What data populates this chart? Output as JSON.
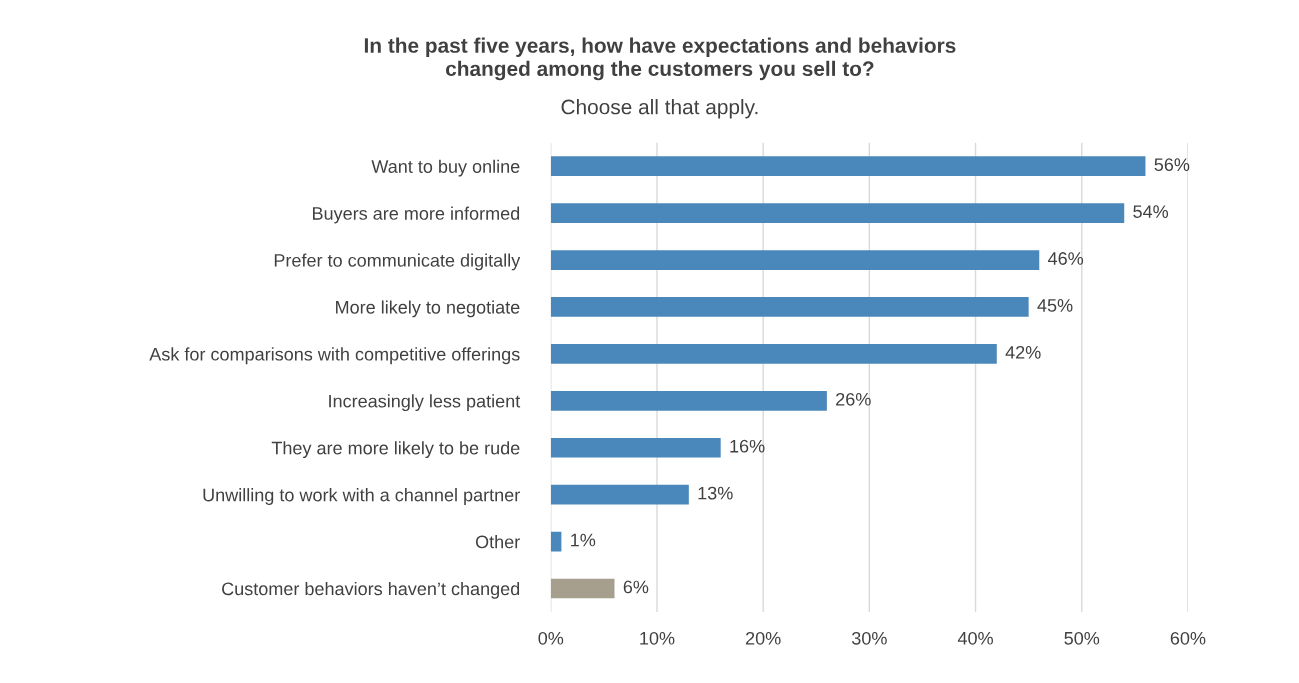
{
  "chart_data": {
    "type": "bar",
    "orientation": "horizontal",
    "title": "In the past five years, how have expectations and behaviors\nchanged among the customers you sell to?",
    "subtitle": "Choose all that apply.",
    "categories": [
      "Want to buy online",
      "Buyers are more informed",
      "Prefer to communicate digitally",
      "More likely to negotiate",
      "Ask for comparisons with competitive offerings",
      "Increasingly less patient",
      "They are more likely to be rude",
      "Unwilling to work with a channel partner",
      "Other",
      "Customer behaviors haven’t changed"
    ],
    "values": [
      56,
      54,
      46,
      45,
      42,
      26,
      16,
      13,
      1,
      6
    ],
    "value_labels": [
      "56%",
      "54%",
      "46%",
      "45%",
      "42%",
      "26%",
      "16%",
      "13%",
      "1%",
      "6%"
    ],
    "colors": [
      "#4a87ba",
      "#4a87ba",
      "#4a87ba",
      "#4a87ba",
      "#4a87ba",
      "#4a87ba",
      "#4a87ba",
      "#4a87ba",
      "#4a87ba",
      "#a69f8e"
    ],
    "xlim": [
      0,
      60
    ],
    "xticks": [
      {
        "value": 0,
        "label": "0%"
      },
      {
        "value": 10,
        "label": "10%"
      },
      {
        "value": 20,
        "label": "20%"
      },
      {
        "value": 30,
        "label": "30%"
      },
      {
        "value": 40,
        "label": "40%"
      },
      {
        "value": 50,
        "label": "50%"
      },
      {
        "value": 60,
        "label": "60%"
      }
    ],
    "grid": "x",
    "legend": false
  }
}
